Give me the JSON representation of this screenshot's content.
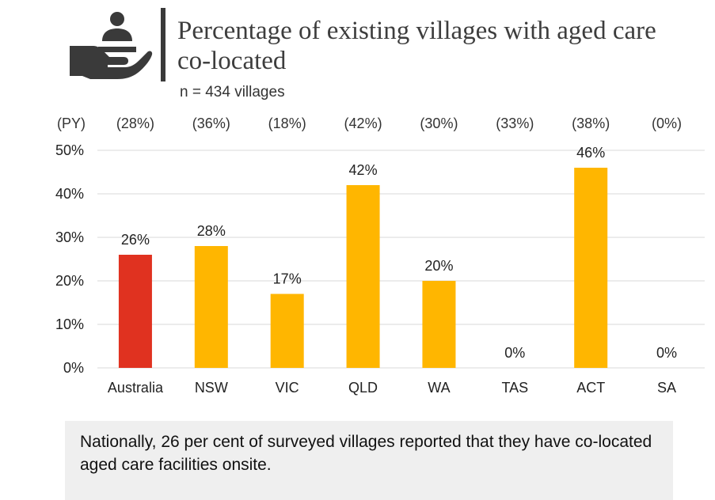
{
  "header": {
    "title": "Percentage of existing villages with aged care co-located",
    "subtitle": "n = 434 villages",
    "icon": "hand-holding-person-icon"
  },
  "chart_data": {
    "type": "bar",
    "categories": [
      "Australia",
      "NSW",
      "VIC",
      "QLD",
      "WA",
      "TAS",
      "ACT",
      "SA"
    ],
    "values": [
      26,
      28,
      17,
      42,
      20,
      0,
      46,
      0
    ],
    "value_labels": [
      "26%",
      "28%",
      "17%",
      "42%",
      "20%",
      "0%",
      "46%",
      "0%"
    ],
    "prior_year_label": "(PY)",
    "prior_year_values": [
      "(28%)",
      "(36%)",
      "(18%)",
      "(42%)",
      "(30%)",
      "(33%)",
      "(38%)",
      "(0%)"
    ],
    "yticks": [
      "0%",
      "10%",
      "20%",
      "30%",
      "40%",
      "50%"
    ],
    "ylim": [
      0,
      50
    ],
    "title": "Percentage of existing villages with aged care co-located",
    "xlabel": "",
    "ylabel": "",
    "grid": true,
    "colors": {
      "highlight": "#E03220",
      "default": "#FFB600",
      "grid": "#d9d9d9"
    }
  },
  "note": {
    "text": "Nationally, 26 per cent of surveyed villages reported that they have co-located aged care facilities onsite."
  }
}
